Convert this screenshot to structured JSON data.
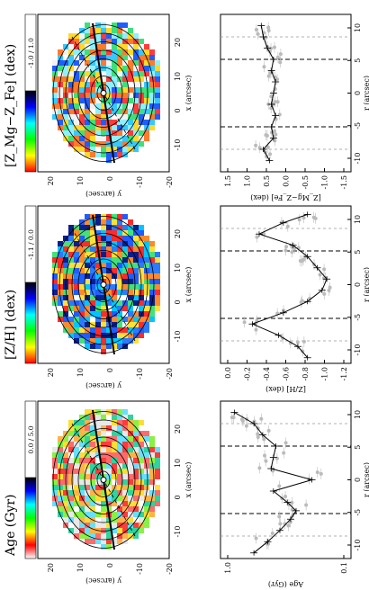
{
  "figure": {
    "orientation": "rotated-90-ccw",
    "map_panels": [
      {
        "id": "age",
        "title": "Age (Gyr)",
        "colorbar_label": "0.0  /  5.0",
        "colorbar_colors": [
          "#ffffff",
          "#ff0000",
          "#ffff00",
          "#00ff00",
          "#00ffff",
          "#0000ff",
          "#000000"
        ],
        "y_ticks": [
          "20",
          "10",
          "0",
          "-10",
          "-20"
        ],
        "x_ticks": [
          "-10",
          "0",
          "10",
          "20"
        ],
        "y_label": "y (arcsec)",
        "x_label": "x (arcsec)"
      },
      {
        "id": "zh",
        "title": "[Z/H] (dex)",
        "colorbar_label": "-1.1  /  0.0",
        "colorbar_colors": [
          "#ff0000",
          "#ffff00",
          "#00ff00",
          "#00ffff",
          "#0000ff",
          "#000000"
        ],
        "y_ticks": [
          "20",
          "10",
          "0",
          "-10",
          "-20"
        ],
        "x_ticks": [
          "-10",
          "0",
          "10",
          "20"
        ],
        "y_label": "y (arcsec)",
        "x_label": "x (arcsec)"
      },
      {
        "id": "zmgfe",
        "title": "[Z_Mg−Z_Fe] (dex)",
        "colorbar_label": "-1.0  /  1.0",
        "colorbar_colors": [
          "#ff0000",
          "#ffff00",
          "#00ff00",
          "#00ffff",
          "#0000ff",
          "#000000"
        ],
        "y_ticks": [
          "20",
          "10",
          "0",
          "-10",
          "-20"
        ],
        "x_ticks": [
          "-10",
          "0",
          "10",
          "20"
        ],
        "y_label": "y (arcsec)",
        "x_label": "x (arcsec)"
      }
    ],
    "profile_panels": [
      {
        "id": "age-profile",
        "y_label": "Age (Gyr)",
        "y_ticks": [
          "1.0",
          "0.1"
        ],
        "x_ticks": [
          "-10",
          "-5",
          "0",
          "5",
          "10"
        ],
        "x_label": "r (arcsec)"
      },
      {
        "id": "zh-profile",
        "y_label": "[Z/H] (dex)",
        "y_ticks": [
          "0.0",
          "-0.2",
          "-0.4",
          "-0.6",
          "-0.8",
          "-1.0",
          "-1.2"
        ],
        "x_ticks": [
          "-10",
          "-5",
          "0",
          "5",
          "10"
        ],
        "x_label": "r (arcsec)"
      },
      {
        "id": "zmgfe-profile",
        "y_label": "[Z_Mg−Z_Fe] (dex)",
        "y_ticks": [
          "1.5",
          "1.0",
          "0.5",
          "0.0",
          "-0.5",
          "-1.0",
          "-1.5"
        ],
        "x_ticks": [
          "-10",
          "-5",
          "0",
          "5",
          "10"
        ],
        "x_label": "r (arcsec)"
      }
    ]
  },
  "chart_data": [
    {
      "type": "scatter",
      "title": "Age (Gyr)",
      "xlabel": "r (arcsec)",
      "ylabel": "Age (Gyr)",
      "xlim": [
        -14,
        14
      ],
      "ylim": [
        0.08,
        1.2
      ],
      "yscale": "log",
      "series": [
        {
          "x": [
            -13,
            -11,
            -9,
            -7,
            -5.5,
            -4,
            -2,
            0,
            2,
            4,
            6,
            8,
            10,
            12
          ],
          "y": [
            0.6,
            0.45,
            0.35,
            0.28,
            0.25,
            0.3,
            0.4,
            0.18,
            0.42,
            0.4,
            0.38,
            0.5,
            0.6,
            0.9
          ]
        }
      ]
    },
    {
      "type": "scatter",
      "title": "[Z/H] (dex)",
      "xlabel": "r (arcsec)",
      "ylabel": "[Z/H] (dex)",
      "xlim": [
        -14,
        14
      ],
      "ylim": [
        -1.3,
        0.05
      ],
      "series": [
        {
          "x": [
            -13,
            -11,
            -9,
            -7,
            -5,
            -3,
            -1,
            1,
            3,
            5,
            7,
            9,
            11,
            12.5
          ],
          "y": [
            -0.85,
            -0.75,
            -0.55,
            -0.28,
            -0.6,
            -0.85,
            -1.0,
            -1.05,
            -0.95,
            -0.85,
            -0.7,
            -0.35,
            -0.6,
            -0.85
          ]
        }
      ]
    },
    {
      "type": "scatter",
      "title": "[Z_Mg−Z_Fe] (dex)",
      "xlabel": "r (arcsec)",
      "ylabel": "[Z_Mg−Z_Fe] (dex)",
      "xlim": [
        -14,
        14
      ],
      "ylim": [
        -1.6,
        1.6
      ],
      "series": [
        {
          "x": [
            -12,
            -10,
            -8,
            -6,
            -4,
            -2,
            0,
            2,
            4,
            6,
            8,
            10,
            12
          ],
          "y": [
            0.4,
            0.55,
            0.3,
            0.35,
            0.25,
            0.35,
            0.3,
            0.25,
            0.35,
            0.3,
            0.45,
            0.55,
            0.6
          ]
        }
      ]
    }
  ]
}
